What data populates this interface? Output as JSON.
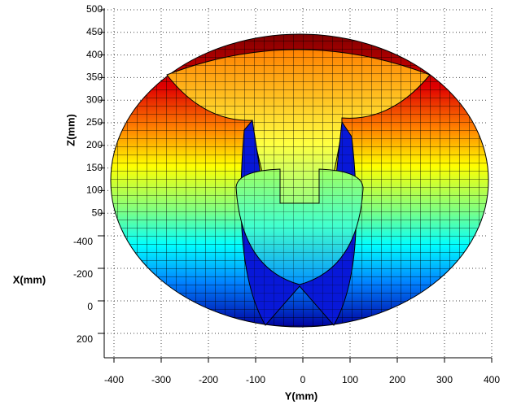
{
  "chart_data": {
    "type": "surface",
    "xlabel": "X(mm)",
    "ylabel": "Y(mm)",
    "zlabel": "Z(mm)",
    "xlim": [
      -400,
      200
    ],
    "xticks": [
      -400,
      -200,
      0,
      200
    ],
    "ylim": [
      -400,
      400
    ],
    "yticks": [
      -400,
      -300,
      -200,
      -100,
      0,
      100,
      200,
      300,
      400
    ],
    "zlim": [
      0,
      500
    ],
    "zticks": [
      50,
      100,
      150,
      200,
      250,
      300,
      350,
      400,
      450,
      500
    ],
    "grid": true
  }
}
